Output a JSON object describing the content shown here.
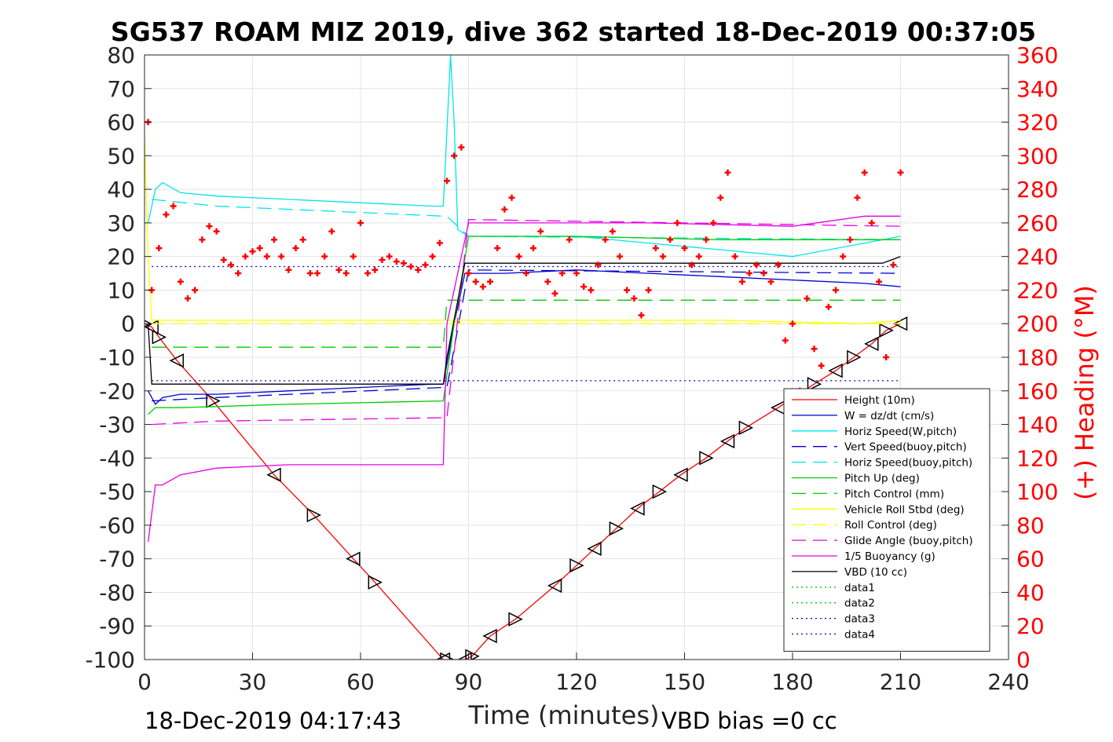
{
  "chart_data": {
    "type": "line",
    "title": "SG537 ROAM MIZ 2019, dive 362 started 18-Dec-2019 00:37:05",
    "xlabel": "Time (minutes)",
    "ylabel_right": "(+) Heading (°M)",
    "footer_left": "18-Dec-2019 04:17:43",
    "footer_right": "VBD bias =0 cc",
    "xlim": [
      0,
      240
    ],
    "ylim": [
      -100,
      80
    ],
    "ylim_right": [
      0,
      360
    ],
    "xticks": [
      "0",
      "30",
      "60",
      "90",
      "120",
      "150",
      "180",
      "210",
      "240"
    ],
    "yticks": [
      "80",
      "70",
      "60",
      "50",
      "40",
      "30",
      "20",
      "10",
      "0",
      "-10",
      "-20",
      "-30",
      "-40",
      "-50",
      "-60",
      "-70",
      "-80",
      "-90",
      "-100"
    ],
    "yticks_right": [
      "360",
      "340",
      "320",
      "300",
      "280",
      "260",
      "240",
      "220",
      "200",
      "180",
      "160",
      "140",
      "120",
      "100",
      "80",
      "60",
      "40",
      "20",
      "0"
    ],
    "grid": true,
    "legend_position": "lower-right",
    "series": [
      {
        "name": "Height (10m)",
        "color": "#ff0000",
        "style": "solid",
        "markers": "triangles",
        "x": [
          0,
          2,
          4,
          9,
          19,
          36,
          47,
          58,
          64,
          83,
          84,
          89,
          91,
          96,
          103,
          114,
          120,
          125,
          131,
          137,
          143,
          149,
          156,
          162,
          167,
          176,
          186,
          192,
          197,
          202,
          206,
          210
        ],
        "y": [
          0,
          -1,
          -4,
          -11,
          -23,
          -45,
          -57,
          -70,
          -77,
          -100,
          -100,
          -100,
          -99,
          -93,
          -88,
          -78,
          -72,
          -67,
          -61,
          -55,
          -50,
          -45,
          -40,
          -35,
          -31,
          -25,
          -18,
          -14,
          -10,
          -6,
          -2,
          0
        ]
      },
      {
        "name": "W = dz/dt (cm/s)",
        "color": "#0000cc",
        "style": "solid",
        "x": [
          1,
          3,
          5,
          10,
          20,
          40,
          60,
          80,
          83,
          86,
          89,
          100,
          120,
          140,
          160,
          180,
          200,
          210
        ],
        "y": [
          -20,
          -24,
          -22,
          -21,
          -21,
          -20,
          -19,
          -18,
          -18,
          0,
          15,
          15,
          16,
          15,
          14,
          13,
          12,
          11
        ]
      },
      {
        "name": "Horiz Speed(W,pitch)",
        "color": "#00e6e6",
        "style": "solid",
        "x": [
          1,
          3,
          5,
          10,
          20,
          40,
          60,
          80,
          83,
          85,
          86,
          87,
          90,
          100,
          120,
          140,
          160,
          180,
          200,
          210
        ],
        "y": [
          30,
          40,
          42,
          39,
          38,
          37,
          36,
          35,
          35,
          80,
          60,
          28,
          26,
          26,
          26,
          24,
          22,
          20,
          24,
          26
        ]
      },
      {
        "name": "Vert Speed(buoy,pitch)",
        "color": "#0000cc",
        "style": "dashed",
        "x": [
          2,
          20,
          83,
          84,
          90,
          210
        ],
        "y": [
          -23,
          -22,
          -19,
          -19,
          16,
          15
        ]
      },
      {
        "name": "Horiz Speed(buoy,pitch)",
        "color": "#00e6e6",
        "style": "dashed",
        "x": [
          2,
          20,
          83,
          84,
          90,
          210
        ],
        "y": [
          37,
          35,
          32,
          32,
          26,
          25
        ]
      },
      {
        "name": "Pitch Up (deg)",
        "color": "#00cc00",
        "style": "solid",
        "x": [
          1,
          3,
          10,
          40,
          83,
          86,
          90,
          120,
          160,
          210
        ],
        "y": [
          -27,
          -25,
          -25,
          -24,
          -23,
          0,
          26,
          26,
          25,
          25
        ]
      },
      {
        "name": "Pitch Control (mm)",
        "color": "#00cc00",
        "style": "dashed",
        "x": [
          2,
          83,
          84,
          210
        ],
        "y": [
          -7,
          -7,
          7,
          7
        ]
      },
      {
        "name": "Vehicle Roll Stbd (deg)",
        "color": "#ffff00",
        "style": "solid",
        "x": [
          0,
          1,
          2,
          10,
          40,
          83,
          90,
          120,
          160,
          200,
          210
        ],
        "y": [
          55,
          20,
          1,
          1,
          1,
          1,
          1,
          1,
          1,
          0,
          1
        ]
      },
      {
        "name": "Roll Control (deg)",
        "color": "#ffff00",
        "style": "dashed",
        "x": [
          2,
          210
        ],
        "y": [
          0,
          0
        ]
      },
      {
        "name": "Glide Angle (buoy,pitch)",
        "color": "#e600e6",
        "style": "dashed",
        "x": [
          2,
          20,
          83,
          84,
          90,
          210
        ],
        "y": [
          -30,
          -29,
          -28,
          -28,
          31,
          29
        ]
      },
      {
        "name": "1/5 Buoyancy (g)",
        "color": "#e600e6",
        "style": "solid",
        "x": [
          1,
          3,
          5,
          10,
          20,
          40,
          83,
          84,
          90,
          140,
          180,
          200,
          210
        ],
        "y": [
          -65,
          -48,
          -48,
          -45,
          -43,
          -42,
          -42,
          0,
          30,
          30,
          29,
          32,
          32
        ]
      },
      {
        "name": "VBD (10 cc)",
        "color": "#000000",
        "style": "solid",
        "x": [
          1,
          2,
          83,
          84,
          89,
          205,
          210
        ],
        "y": [
          0,
          -18,
          -18,
          -10,
          18,
          18,
          20
        ]
      },
      {
        "name": "data1",
        "color": "#00cc00",
        "style": "dotted",
        "x": [],
        "y": []
      },
      {
        "name": "data2",
        "color": "#00cc00",
        "style": "dotted",
        "x": [],
        "y": []
      },
      {
        "name": "data3",
        "color": "#0000cc",
        "style": "dotted",
        "x": [
          2,
          210
        ],
        "y": [
          -17,
          -17
        ]
      },
      {
        "name": "data4",
        "color": "#0000cc",
        "style": "dotted",
        "x": [
          2,
          210
        ],
        "y": [
          17,
          17
        ]
      }
    ],
    "heading_series": {
      "axis": "right",
      "color": "#ff0000",
      "marker": "+",
      "x": [
        1,
        2,
        4,
        6,
        8,
        10,
        12,
        14,
        16,
        18,
        20,
        22,
        24,
        26,
        28,
        30,
        32,
        34,
        36,
        38,
        40,
        42,
        44,
        46,
        48,
        50,
        52,
        54,
        56,
        58,
        60,
        62,
        64,
        66,
        68,
        70,
        72,
        74,
        76,
        78,
        80,
        82,
        84,
        86,
        88,
        90,
        92,
        94,
        96,
        98,
        100,
        102,
        104,
        106,
        108,
        110,
        112,
        114,
        116,
        118,
        120,
        122,
        124,
        126,
        128,
        130,
        132,
        134,
        136,
        138,
        140,
        142,
        144,
        146,
        148,
        150,
        152,
        154,
        156,
        158,
        160,
        162,
        164,
        166,
        168,
        170,
        172,
        174,
        176,
        178,
        180,
        182,
        184,
        186,
        188,
        190,
        192,
        194,
        196,
        198,
        200,
        202,
        204,
        206,
        208,
        210
      ],
      "y": [
        320,
        220,
        245,
        265,
        270,
        225,
        215,
        220,
        250,
        258,
        255,
        238,
        235,
        230,
        240,
        243,
        245,
        240,
        250,
        240,
        232,
        245,
        250,
        230,
        230,
        240,
        255,
        232,
        230,
        240,
        260,
        230,
        232,
        238,
        240,
        237,
        236,
        234,
        232,
        235,
        240,
        248,
        285,
        300,
        305,
        230,
        225,
        222,
        225,
        245,
        268,
        275,
        240,
        230,
        245,
        255,
        225,
        218,
        230,
        250,
        230,
        222,
        220,
        235,
        250,
        255,
        240,
        220,
        215,
        205,
        220,
        245,
        240,
        250,
        260,
        245,
        235,
        240,
        250,
        260,
        275,
        290,
        240,
        225,
        230,
        235,
        230,
        225,
        235,
        190,
        200,
        160,
        215,
        185,
        175,
        210,
        220,
        240,
        250,
        275,
        290,
        260,
        225,
        180,
        235,
        290
      ]
    }
  }
}
